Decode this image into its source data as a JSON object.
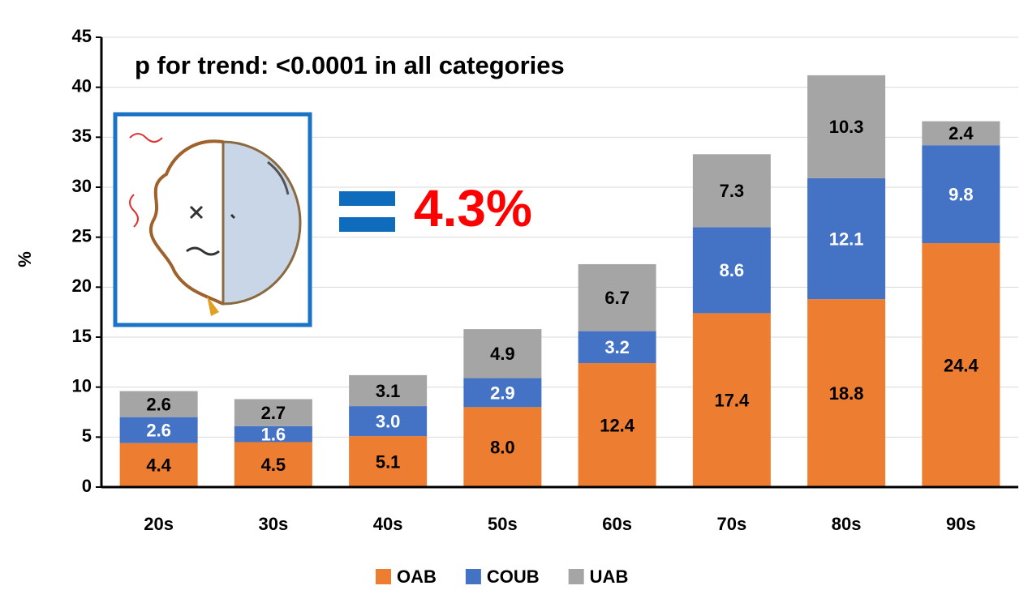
{
  "chart_data": {
    "type": "stacked_bar",
    "annotations": [
      "p for trend: <0.0001 in all categories",
      "4.3%"
    ],
    "y_label": "%",
    "categories": [
      "20s",
      "30s",
      "40s",
      "50s",
      "60s",
      "70s",
      "80s",
      "90s"
    ],
    "series": [
      {
        "name": "OAB",
        "color": "#ED7D31",
        "label_color": "#000000",
        "values": [
          4.4,
          4.5,
          5.1,
          8,
          12.4,
          17.4,
          18.8,
          24.4
        ],
        "value_labels": [
          "4.4",
          "4.5",
          "5.1",
          "8.0",
          "12.4",
          "17.4",
          "18.8",
          "24.4"
        ]
      },
      {
        "name": "COUB",
        "color": "#4472C4",
        "label_color": "#FFFFFF",
        "values": [
          2.6,
          1.6,
          3,
          2.9,
          3.2,
          8.6,
          12.1,
          9.8
        ],
        "value_labels": [
          "2.6",
          "1.6",
          "3.0",
          "2.9",
          "3.2",
          "8.6",
          "12.1",
          "9.8"
        ]
      },
      {
        "name": "UAB",
        "color": "#A5A5A5",
        "label_color": "#000000",
        "values": [
          2.6,
          2.7,
          3.1,
          4.9,
          6.7,
          7.3,
          10.3,
          2.4
        ],
        "value_labels": [
          "2.6",
          "2.7",
          "3.1",
          "4.9",
          "6.7",
          "7.3",
          "10.3",
          "2.4"
        ]
      }
    ],
    "ylim": [
      0,
      45
    ],
    "yticks": [
      0,
      5,
      10,
      15,
      20,
      25,
      30,
      35,
      40,
      45
    ],
    "grid": true
  }
}
